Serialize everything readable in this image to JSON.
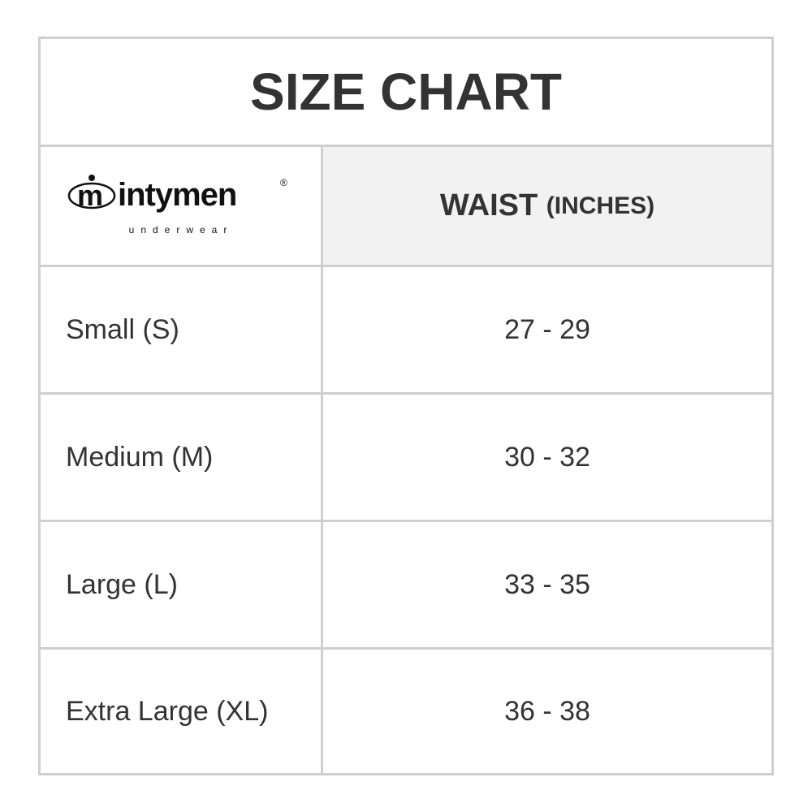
{
  "title": "SIZE CHART",
  "logo": {
    "brand": "mintymen",
    "tagline": "underwear",
    "mark": "®"
  },
  "header": {
    "col2_main": "WAIST",
    "col2_unit": "(INCHES)"
  },
  "rows": [
    {
      "size": "Small (S)",
      "waist": "27 - 29"
    },
    {
      "size": "Medium (M)",
      "waist": "30 - 32"
    },
    {
      "size": "Large (L)",
      "waist": "33 - 35"
    },
    {
      "size": "Extra Large (XL)",
      "waist": "36 - 38"
    }
  ],
  "colors": {
    "border": "#cfcfcf",
    "header_bg": "#f2f2f2",
    "text": "#333333"
  }
}
